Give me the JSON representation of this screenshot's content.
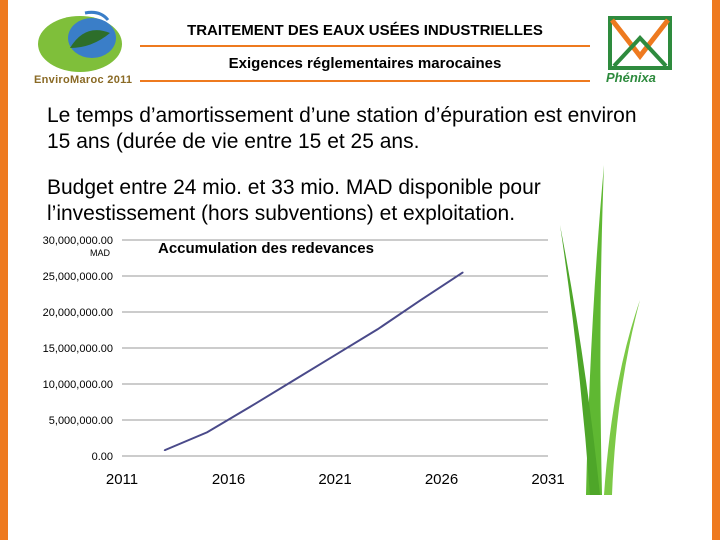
{
  "header": {
    "title": "TRAITEMENT DES EAUX USÉES INDUSTRIELLES",
    "subtitle": "Exigences réglementaires marocaines",
    "logo_left_text": "EnviroMaroc 2011",
    "logo_right_text": "Phénixa"
  },
  "body": {
    "paragraph1": "Le temps d’amortissement d’une station d’épuration est environ 15 ans (durée de vie entre 15 et 25 ans.",
    "paragraph2": "Budget entre 24 mio. et 33 mio. MAD disponible pour l’investissement (hors subventions) et exploitation."
  },
  "colors": {
    "accent": "#ee7a1f",
    "line": "#4a4a8a",
    "grass": "#5fb832"
  },
  "chart_data": {
    "type": "line",
    "title": "Accumulation des redevances",
    "ylabel": "MAD",
    "xlim": [
      2011,
      2031
    ],
    "ylim": [
      0,
      30000000
    ],
    "x_ticks": [
      "2011",
      "2016",
      "2021",
      "2026",
      "2031"
    ],
    "y_ticks": [
      "0.00",
      "5,000,000.00",
      "10,000,000.00",
      "15,000,000.00",
      "20,000,000.00",
      "25,000,000.00",
      "30,000,000.00"
    ],
    "x": [
      2013,
      2015,
      2017,
      2019,
      2021,
      2023,
      2025,
      2027
    ],
    "series": [
      {
        "values": [
          800000,
          3300000,
          6800000,
          10400000,
          14000000,
          17600000,
          21600000,
          25500000
        ]
      }
    ]
  }
}
